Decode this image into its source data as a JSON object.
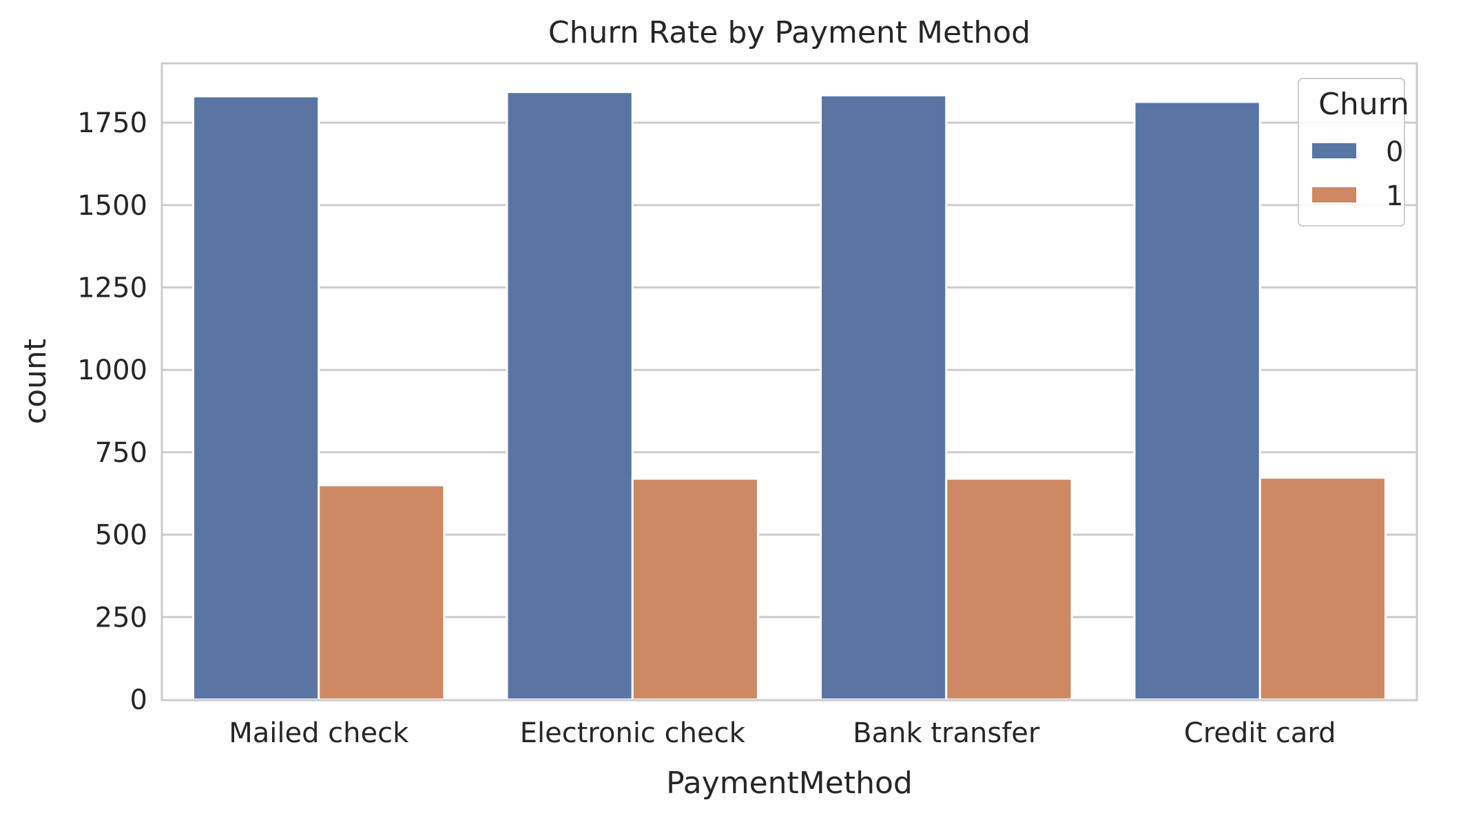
{
  "chart_data": {
    "type": "bar",
    "title": "Churn Rate by Payment Method",
    "xlabel": "PaymentMethod",
    "ylabel": "count",
    "categories": [
      "Mailed check",
      "Electronic check",
      "Bank transfer",
      "Credit card"
    ],
    "series": [
      {
        "name": "0",
        "color": "#5875a4",
        "values": [
          1830,
          1843,
          1833,
          1813
        ]
      },
      {
        "name": "1",
        "color": "#cc8963",
        "values": [
          650,
          670,
          670,
          673
        ]
      }
    ],
    "ylim": [
      0,
      1930
    ],
    "yticks": [
      "0",
      "250",
      "500",
      "750",
      "1000",
      "1250",
      "1500",
      "1750"
    ],
    "grid": true,
    "legend": {
      "title": "Churn",
      "position": "top-right"
    }
  }
}
